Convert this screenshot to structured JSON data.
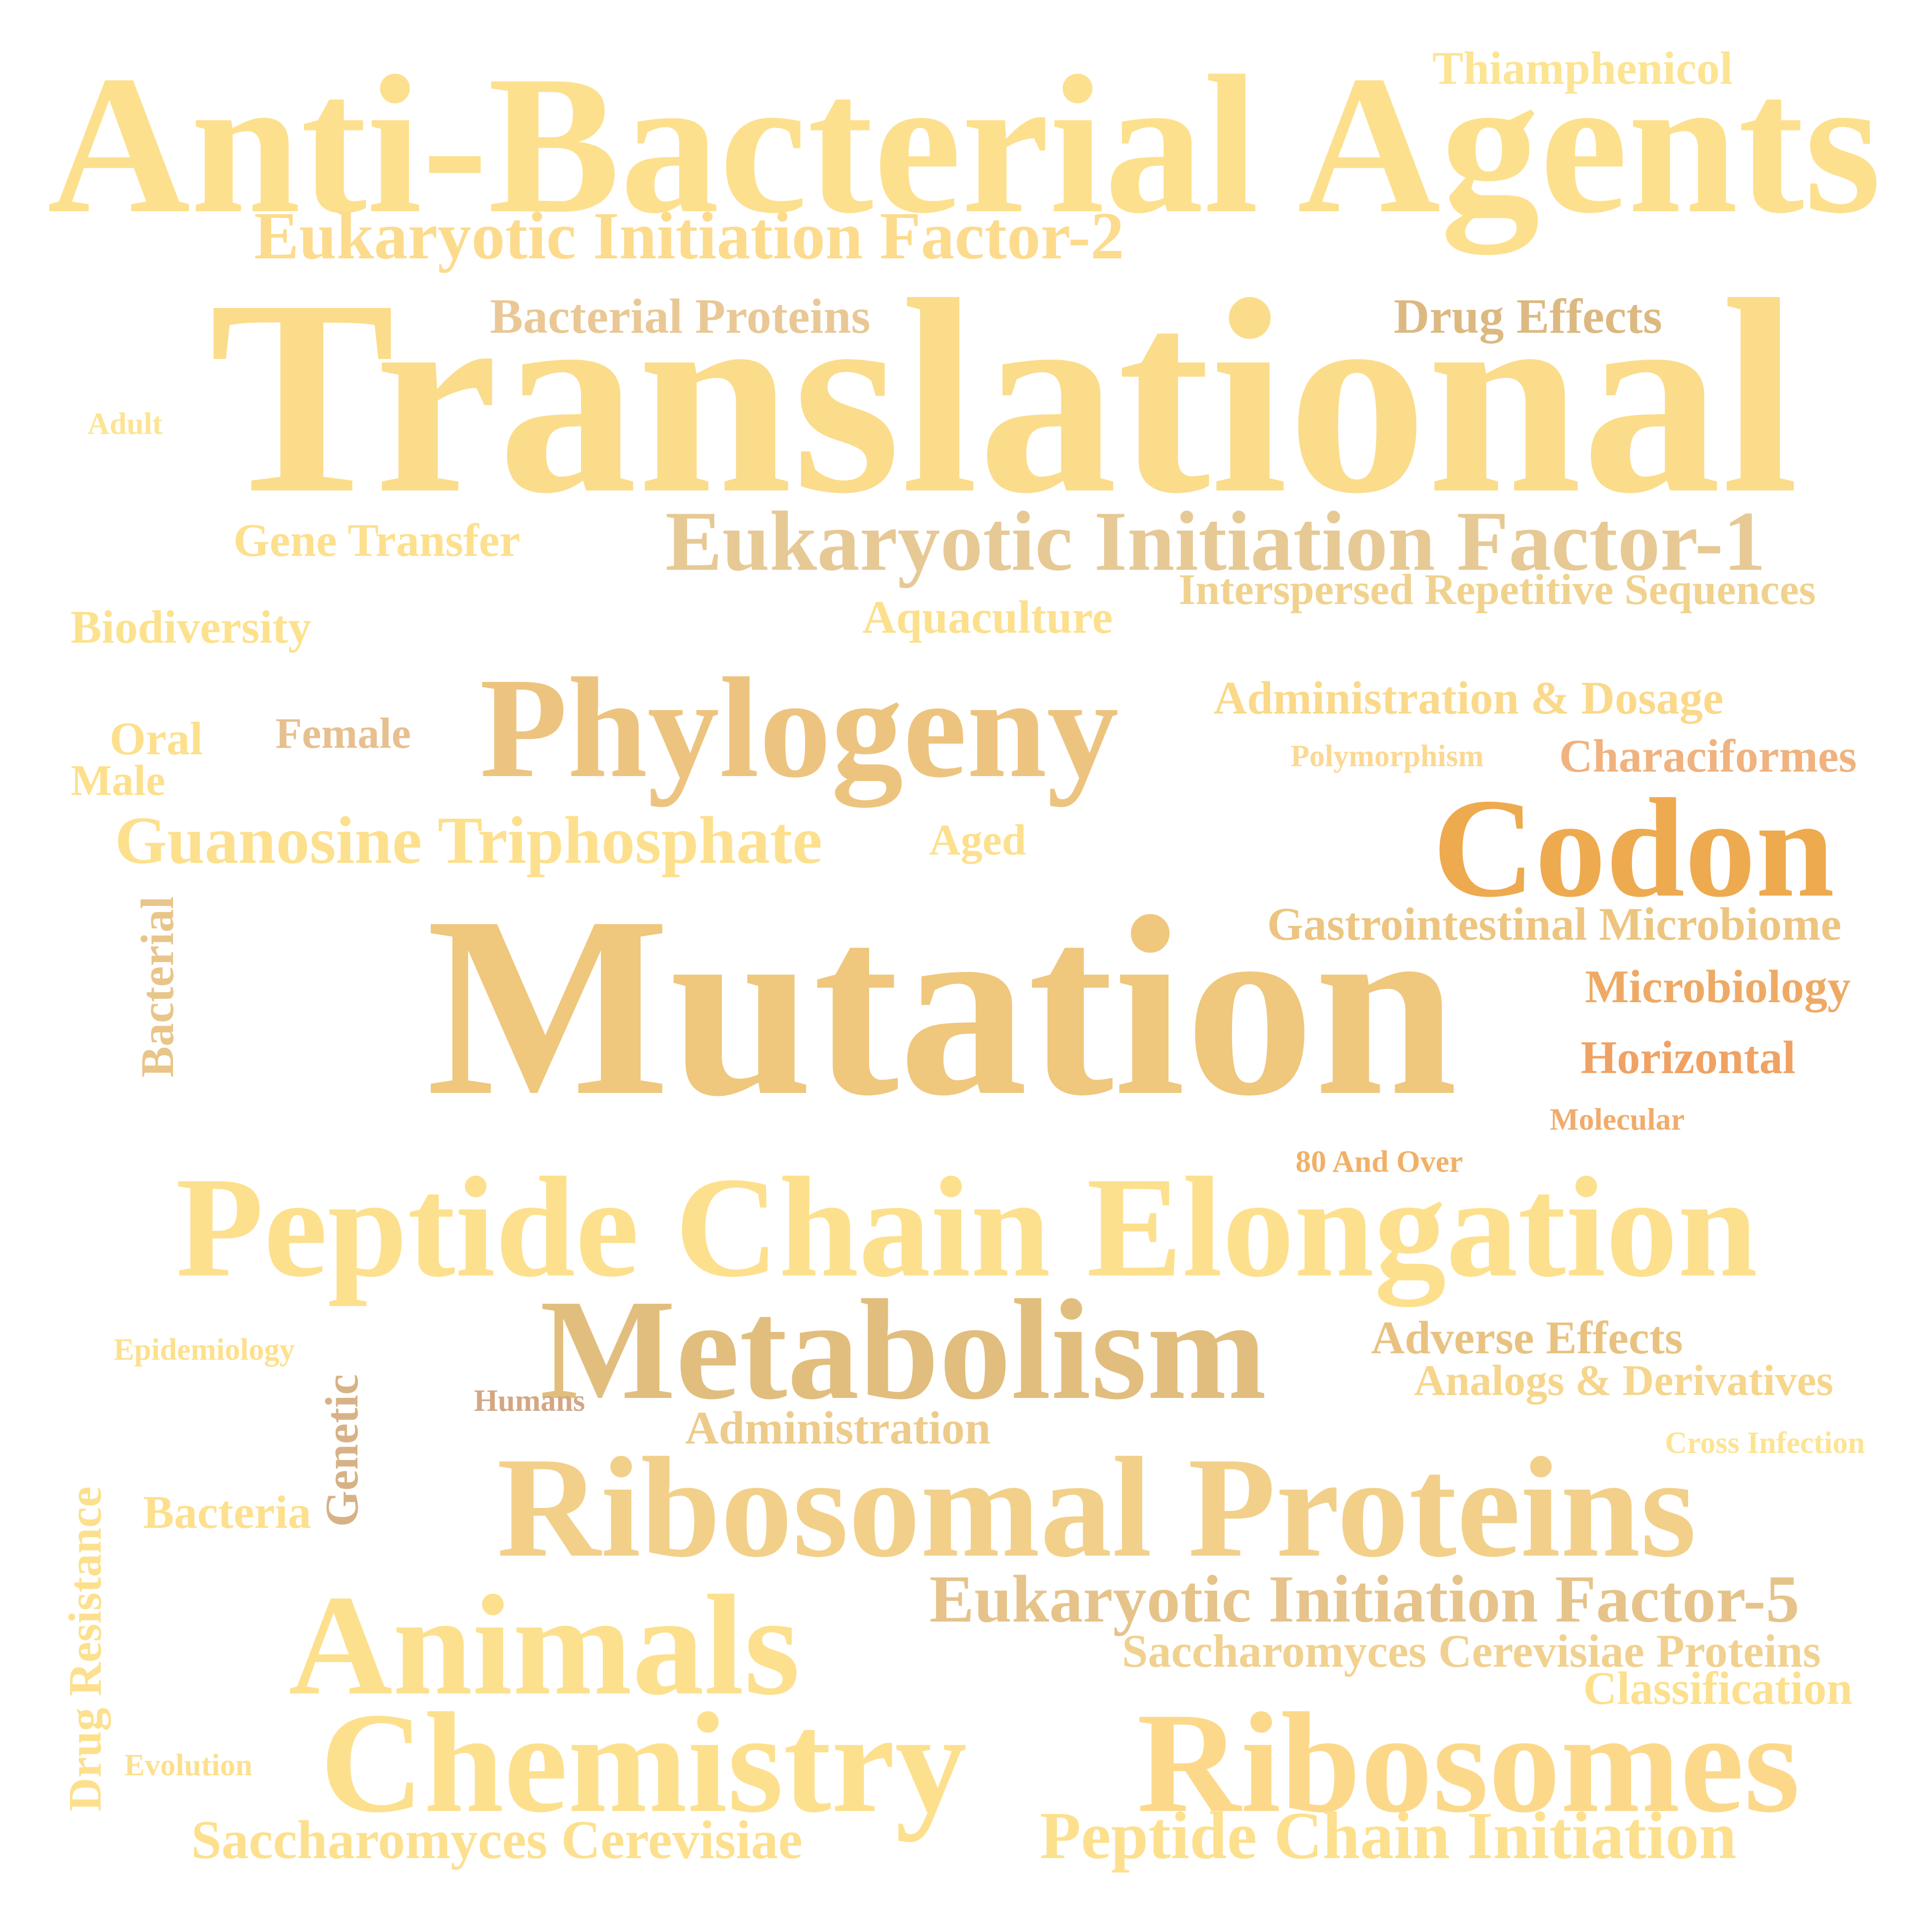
{
  "words": [
    {
      "text": "Anti-Bacterial Agents",
      "color": "#fde08e"
    },
    {
      "text": "Thiamphenicol",
      "color": "#fde493"
    },
    {
      "text": "Eukaryotic Initiation Factor-2",
      "color": "#fcdb8d"
    },
    {
      "text": "Translational",
      "color": "#fbdc8b"
    },
    {
      "text": "Bacterial Proteins",
      "color": "#e9c895"
    },
    {
      "text": "Drug Effects",
      "color": "#dcb981"
    },
    {
      "text": "Adult",
      "color": "#fde493"
    },
    {
      "text": "Gene Transfer",
      "color": "#fde08e"
    },
    {
      "text": "Eukaryotic Initiation Factor-1",
      "color": "#e6c995"
    },
    {
      "text": "Interspersed Repetitive Sequences",
      "color": "#f0d28e"
    },
    {
      "text": "Aquaculture",
      "color": "#fde08e"
    },
    {
      "text": "Biodiversity",
      "color": "#fce28e"
    },
    {
      "text": "Phylogeny",
      "color": "#edc47f"
    },
    {
      "text": "Administration & Dosage",
      "color": "#fbd98a"
    },
    {
      "text": "Female",
      "color": "#e6c08f"
    },
    {
      "text": "Oral",
      "color": "#fde08e"
    },
    {
      "text": "Male",
      "color": "#fde08e"
    },
    {
      "text": "Polymorphism",
      "color": "#fcd891"
    },
    {
      "text": "Characiformes",
      "color": "#f0b27e"
    },
    {
      "text": "Guanosine Triphosphate",
      "color": "#fde08e"
    },
    {
      "text": "Aged",
      "color": "#fde08e"
    },
    {
      "text": "Codon",
      "color": "#eeaa4f"
    },
    {
      "text": "Bacterial",
      "color": "#e9c58a"
    },
    {
      "text": "Mutation",
      "color": "#efc77d"
    },
    {
      "text": "Gastrointestinal Microbiome",
      "color": "#edc581"
    },
    {
      "text": "Microbiology",
      "color": "#eeaa65"
    },
    {
      "text": "Horizontal",
      "color": "#efa263"
    },
    {
      "text": "Molecular",
      "color": "#f0ac6d"
    },
    {
      "text": "80 And Over",
      "color": "#f0b167"
    },
    {
      "text": "Peptide Chain Elongation",
      "color": "#fde08e"
    },
    {
      "text": "Metabolism",
      "color": "#e1be7e"
    },
    {
      "text": "Epidemiology",
      "color": "#fde08e"
    },
    {
      "text": "Adverse Effects",
      "color": "#e9c281"
    },
    {
      "text": "Analogs & Derivatives",
      "color": "#f6d58c"
    },
    {
      "text": "Humans",
      "color": "#d4a683"
    },
    {
      "text": "Genetic",
      "color": "#d7b286"
    },
    {
      "text": "Administration",
      "color": "#edcb8a"
    },
    {
      "text": "Cross Infection",
      "color": "#fde493"
    },
    {
      "text": "Ribosomal Proteins",
      "color": "#f2d08a"
    },
    {
      "text": "Bacteria",
      "color": "#fde08e"
    },
    {
      "text": "Drug Resistance",
      "color": "#fde08e"
    },
    {
      "text": "Eukaryotic Initiation Factor-5",
      "color": "#e6c38a"
    },
    {
      "text": "Animals",
      "color": "#fde08e"
    },
    {
      "text": "Saccharomyces Cerevisiae Proteins",
      "color": "#f1d190"
    },
    {
      "text": "Classification",
      "color": "#fde08e"
    },
    {
      "text": "Chemistry",
      "color": "#fde08e"
    },
    {
      "text": "Ribosomes",
      "color": "#fcd98a"
    },
    {
      "text": "Evolution",
      "color": "#fde08e"
    },
    {
      "text": "Saccharomyces Cerevisiae",
      "color": "#fde08e"
    },
    {
      "text": "Peptide Chain Initiation",
      "color": "#fde08e"
    }
  ]
}
